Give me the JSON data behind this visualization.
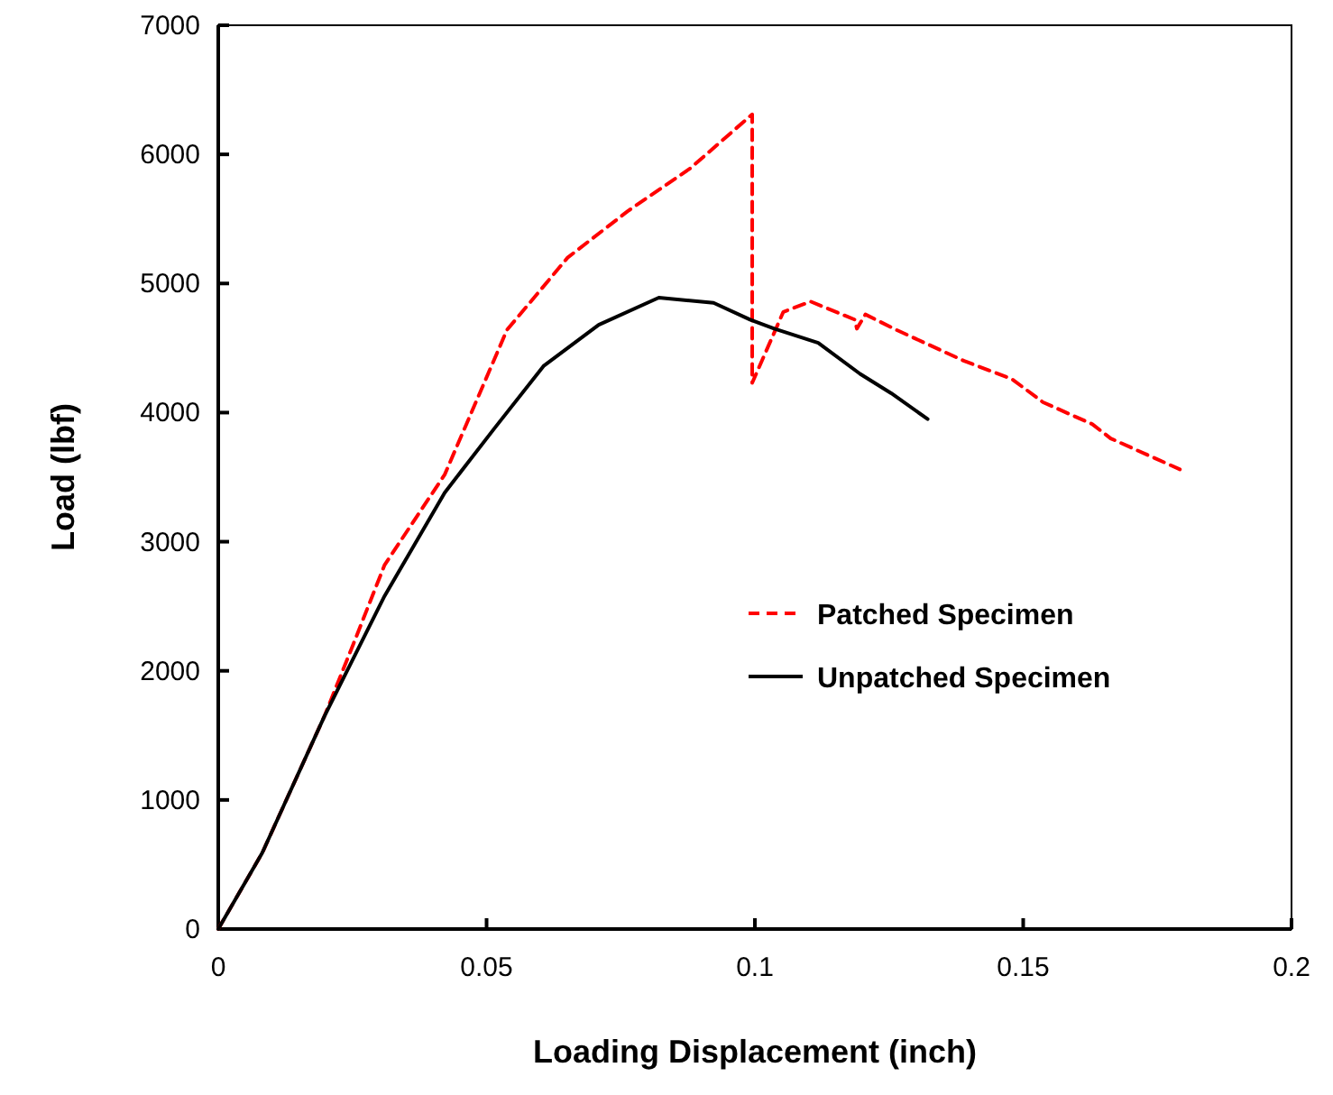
{
  "chart_data": {
    "type": "line",
    "xlabel": "Loading Displacement (inch)",
    "ylabel": "Load (lbf)",
    "xlim": [
      0,
      0.2
    ],
    "xticks": [
      0,
      0.05,
      0.1,
      0.15,
      0.2
    ],
    "ylim": [
      0,
      7000
    ],
    "yticks": [
      0,
      1000,
      2000,
      3000,
      4000,
      5000,
      6000,
      7000
    ],
    "grid": false,
    "legend": "right",
    "marker": "none",
    "series": [
      {
        "name": "Patched Specimen",
        "color": "#ff0000",
        "line_style": "dashed",
        "x": [
          0,
          0.0082,
          0.0198,
          0.0252,
          0.031,
          0.0422,
          0.0538,
          0.0651,
          0.0763,
          0.0879,
          0.0995,
          0.0995,
          0.1053,
          0.1104,
          0.1186,
          0.119,
          0.1206,
          0.1264,
          0.139,
          0.1479,
          0.1537,
          0.1629,
          0.1663,
          0.1792
        ],
        "values": [
          0,
          590,
          1650,
          2210,
          2820,
          3520,
          4640,
          5200,
          5560,
          5890,
          6310,
          4230,
          4780,
          4860,
          4720,
          4650,
          4760,
          4640,
          4400,
          4260,
          4080,
          3910,
          3800,
          3560
        ]
      },
      {
        "name": "Unpatched Specimen",
        "color": "#000000",
        "line_style": "solid",
        "x": [
          0,
          0.0082,
          0.0198,
          0.031,
          0.0422,
          0.0515,
          0.0606,
          0.0709,
          0.0821,
          0.0923,
          0.0991,
          0.1036,
          0.1118,
          0.1196,
          0.1254,
          0.1322
        ],
        "values": [
          0,
          590,
          1650,
          2580,
          3380,
          3880,
          4360,
          4680,
          4890,
          4850,
          4720,
          4650,
          4540,
          4300,
          4150,
          3950
        ]
      }
    ]
  }
}
